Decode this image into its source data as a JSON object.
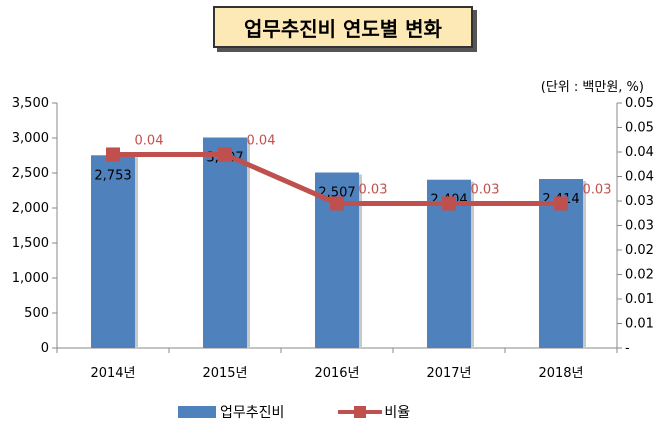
{
  "title": "업무추진비 연도별 변화",
  "unit_note": "(단위 : 백만원, %)",
  "chart_data": {
    "type": "bar",
    "categories": [
      "2014년",
      "2015년",
      "2016년",
      "2017년",
      "2018년"
    ],
    "series": [
      {
        "name": "업무추진비",
        "type": "bar",
        "axis": "left",
        "values": [
          2753,
          3007,
          2507,
          2404,
          2414
        ],
        "labels": [
          "2,753",
          "3,007",
          "2,507",
          "2,404",
          "2,414"
        ],
        "color": "#4f81bd"
      },
      {
        "name": "비율",
        "type": "line",
        "axis": "right",
        "values": [
          0.04,
          0.04,
          0.03,
          0.03,
          0.03
        ],
        "plot_values": [
          0.0395,
          0.0395,
          0.0295,
          0.0295,
          0.0295
        ],
        "labels": [
          "0.04",
          "0.04",
          "0.03",
          "0.03",
          "0.03"
        ],
        "color": "#c0504d"
      }
    ],
    "y_left": {
      "lim": [
        0,
        3500
      ],
      "ticks": [
        "0",
        "500",
        "1,000",
        "1,500",
        "2,000",
        "2,500",
        "3,000",
        "3,500"
      ]
    },
    "y_right": {
      "lim": [
        0,
        0.05
      ],
      "ticks": [
        "-",
        "0.01",
        "0.01",
        "0.02",
        "0.02",
        "0.03",
        "0.03",
        "0.04",
        "0.04",
        "0.05",
        "0.05"
      ]
    },
    "grid": false,
    "legend": "bottom"
  }
}
